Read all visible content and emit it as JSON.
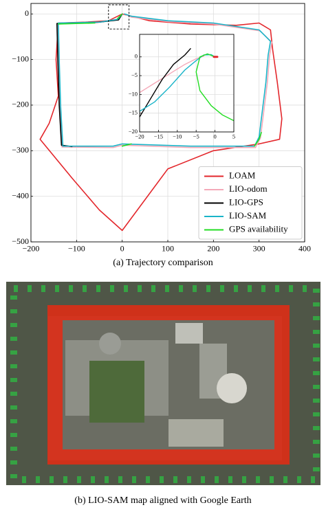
{
  "chart_data": [
    {
      "type": "line",
      "xlim": [
        -200,
        400
      ],
      "ylim": [
        -500,
        23
      ],
      "xticks": [
        {
          "value": -200,
          "label": "−200"
        },
        {
          "value": -100,
          "label": "−100"
        },
        0,
        100,
        200,
        300,
        400
      ],
      "yticks": [
        0,
        {
          "value": -100,
          "label": "−100"
        },
        {
          "value": -200,
          "label": "−200"
        },
        {
          "value": -300,
          "label": "−300"
        },
        {
          "value": -400,
          "label": "−400"
        },
        {
          "value": -500,
          "label": "−500"
        }
      ],
      "grid": true,
      "legend": "lower right",
      "series": [
        {
          "name": "LOAM",
          "color": "#e3262b",
          "x": [
            0,
            60,
            150,
            250,
            300,
            325,
            330,
            340,
            350,
            345,
            300,
            200,
            100,
            0,
            -50,
            -110,
            -180,
            -160,
            -140,
            -145,
            -140,
            -80,
            -30,
            0
          ],
          "y": [
            0,
            -15,
            -22,
            -25,
            -20,
            -35,
            -80,
            -150,
            -230,
            -275,
            -285,
            -300,
            -340,
            -475,
            -430,
            -360,
            -275,
            -240,
            -180,
            -100,
            -20,
            -18,
            -15,
            0
          ]
        },
        {
          "name": "LIO-odom",
          "color": "#f4a9b8",
          "x": [
            0,
            -12,
            -55,
            -142,
            -140,
            -137,
            -132,
            -20,
            0,
            150,
            292,
            303,
            318,
            323,
            328,
            302,
            200,
            100,
            20,
            4
          ],
          "y": [
            0,
            -12,
            -19,
            -22,
            -102,
            -202,
            -292,
            -293,
            -288,
            -293,
            -293,
            -272,
            -152,
            -92,
            -62,
            -37,
            -22,
            -17,
            -7,
            0
          ]
        },
        {
          "name": "LIO-GPS",
          "color": "#000000",
          "x": [
            0,
            -8,
            -50,
            -143,
            -141,
            -138,
            -133,
            -110
          ],
          "y": [
            0,
            -13,
            -18,
            -21,
            -100,
            -200,
            -288,
            -291
          ]
        },
        {
          "name": "LIO-SAM",
          "color": "#19b4c8",
          "x": [
            0,
            -10,
            -50,
            -140,
            -138,
            -135,
            -130,
            -20,
            0,
            150,
            290,
            300,
            315,
            320,
            325,
            300,
            200,
            100,
            20,
            5
          ],
          "y": [
            0,
            -12,
            -18,
            -20,
            -100,
            -200,
            -290,
            -290,
            -285,
            -290,
            -290,
            -270,
            -150,
            -90,
            -60,
            -35,
            -20,
            -15,
            -5,
            0
          ]
        },
        {
          "name": "GPS availability",
          "color": "#22dd22",
          "x": [
            -140,
            -60,
            null,
            -10,
            0,
            null,
            0,
            20,
            null,
            290,
            300,
            305
          ],
          "y": [
            -22,
            -20,
            null,
            -10,
            0,
            null,
            -290,
            -285,
            null,
            -290,
            -275,
            -260
          ]
        }
      ]
    },
    {
      "type": "line",
      "xlim": [
        -20,
        5
      ],
      "ylim": [
        -20,
        6
      ],
      "xticks": [
        {
          "value": -20,
          "label": "−20"
        },
        {
          "value": -15,
          "label": "−15"
        },
        {
          "value": -10,
          "label": "−10"
        },
        {
          "value": -5,
          "label": "−5"
        },
        0,
        5
      ],
      "yticks": [
        0,
        {
          "value": -5,
          "label": "−5"
        },
        {
          "value": -10,
          "label": "−10"
        },
        {
          "value": -15,
          "label": "−15"
        },
        {
          "value": -20,
          "label": "−20"
        }
      ],
      "grid": true,
      "series": [
        {
          "color": "#f4a9b8",
          "x": [
            -20,
            -16,
            -12,
            -8,
            -5,
            -3
          ],
          "y": [
            -9.5,
            -7,
            -4.5,
            -2,
            -0.5,
            0.2
          ]
        },
        {
          "color": "#000000",
          "x": [
            -20,
            -17,
            -14,
            -11,
            -8,
            -6.5
          ],
          "y": [
            -16,
            -11,
            -6,
            -2,
            0.5,
            2.2
          ]
        },
        {
          "color": "#19b4c8",
          "x": [
            -20,
            -16,
            -12,
            -8,
            -5,
            -3,
            -1,
            0
          ],
          "y": [
            -14.5,
            -12,
            -8,
            -3.5,
            -1,
            0.5,
            0.6,
            0
          ]
        },
        {
          "color": "#22dd22",
          "x": [
            0,
            -2,
            -4,
            -5,
            -4,
            -1,
            2,
            5
          ],
          "y": [
            0,
            0.8,
            0,
            -4,
            -9,
            -13,
            -15.5,
            -17
          ]
        },
        {
          "color": "#e3262b",
          "x": [
            -0.3,
            0.6
          ],
          "y": [
            0,
            0
          ]
        }
      ]
    }
  ],
  "captions": [
    "(a) Trajectory comparison",
    "(b) LIO-SAM map aligned with Google Earth"
  ]
}
